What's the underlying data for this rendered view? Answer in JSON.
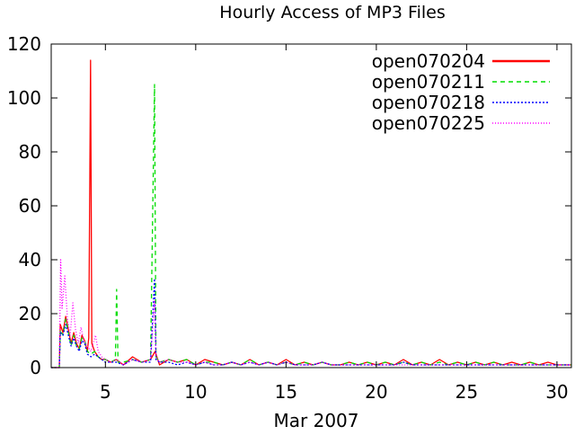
{
  "chart_data": {
    "type": "line",
    "title": "Hourly Access of MP3 Files",
    "xlabel": "Mar 2007",
    "ylabel": "",
    "xlim": [
      2.0,
      30.8
    ],
    "ylim": [
      0,
      120
    ],
    "xticks": [
      5,
      10,
      15,
      20,
      25,
      30
    ],
    "yticks": [
      0,
      20,
      40,
      60,
      80,
      100,
      120
    ],
    "grid": false,
    "legend_position": "top-right",
    "series": [
      {
        "name": "open070204",
        "color": "#ff0000",
        "dash": "solid",
        "points": [
          [
            2.0,
            0
          ],
          [
            2.45,
            0
          ],
          [
            2.5,
            16
          ],
          [
            2.65,
            13
          ],
          [
            2.8,
            19
          ],
          [
            2.95,
            14
          ],
          [
            3.1,
            9
          ],
          [
            3.25,
            13
          ],
          [
            3.4,
            9
          ],
          [
            3.55,
            7
          ],
          [
            3.7,
            12
          ],
          [
            3.85,
            10
          ],
          [
            4.0,
            6
          ],
          [
            4.08,
            11
          ],
          [
            4.18,
            114
          ],
          [
            4.25,
            9
          ],
          [
            4.4,
            6
          ],
          [
            4.6,
            4
          ],
          [
            4.8,
            3
          ],
          [
            5.0,
            3
          ],
          [
            5.3,
            2
          ],
          [
            5.6,
            3
          ],
          [
            6.0,
            1
          ],
          [
            6.5,
            4
          ],
          [
            7.0,
            2
          ],
          [
            7.5,
            3
          ],
          [
            7.75,
            6
          ],
          [
            8.0,
            1
          ],
          [
            8.5,
            3
          ],
          [
            9.0,
            2
          ],
          [
            9.5,
            3
          ],
          [
            10.0,
            1
          ],
          [
            10.5,
            3
          ],
          [
            11.0,
            2
          ],
          [
            11.5,
            1
          ],
          [
            12.0,
            2
          ],
          [
            12.5,
            1
          ],
          [
            13.0,
            3
          ],
          [
            13.5,
            1
          ],
          [
            14.0,
            2
          ],
          [
            14.5,
            1
          ],
          [
            15.0,
            3
          ],
          [
            15.5,
            1
          ],
          [
            16.0,
            2
          ],
          [
            16.5,
            1
          ],
          [
            17.0,
            2
          ],
          [
            17.5,
            1
          ],
          [
            18.0,
            1
          ],
          [
            18.5,
            2
          ],
          [
            19.0,
            1
          ],
          [
            19.5,
            2
          ],
          [
            20.0,
            1
          ],
          [
            20.5,
            2
          ],
          [
            21.0,
            1
          ],
          [
            21.5,
            3
          ],
          [
            22.0,
            1
          ],
          [
            22.5,
            2
          ],
          [
            23.0,
            1
          ],
          [
            23.5,
            3
          ],
          [
            24.0,
            1
          ],
          [
            24.5,
            2
          ],
          [
            25.0,
            1
          ],
          [
            25.5,
            2
          ],
          [
            26.0,
            1
          ],
          [
            26.5,
            2
          ],
          [
            27.0,
            1
          ],
          [
            27.5,
            2
          ],
          [
            28.0,
            1
          ],
          [
            28.5,
            2
          ],
          [
            29.0,
            1
          ],
          [
            29.5,
            2
          ],
          [
            30.0,
            1
          ],
          [
            30.5,
            1
          ],
          [
            30.8,
            1
          ]
        ]
      },
      {
        "name": "open070211",
        "color": "#00dd00",
        "dash": "5,4",
        "points": [
          [
            2.0,
            0
          ],
          [
            2.45,
            0
          ],
          [
            2.5,
            14
          ],
          [
            2.65,
            12
          ],
          [
            2.8,
            18
          ],
          [
            2.95,
            13
          ],
          [
            3.1,
            8
          ],
          [
            3.25,
            12
          ],
          [
            3.4,
            8
          ],
          [
            3.55,
            7
          ],
          [
            3.7,
            11
          ],
          [
            3.85,
            10
          ],
          [
            4.0,
            6
          ],
          [
            4.2,
            5
          ],
          [
            4.4,
            6
          ],
          [
            4.6,
            4
          ],
          [
            4.8,
            3
          ],
          [
            5.0,
            3
          ],
          [
            5.3,
            2
          ],
          [
            5.55,
            3
          ],
          [
            5.62,
            29
          ],
          [
            5.7,
            2
          ],
          [
            6.0,
            2
          ],
          [
            6.5,
            3
          ],
          [
            7.0,
            2
          ],
          [
            7.5,
            3
          ],
          [
            7.72,
            105
          ],
          [
            7.8,
            4
          ],
          [
            8.0,
            2
          ],
          [
            8.5,
            3
          ],
          [
            9.0,
            2
          ],
          [
            9.5,
            3
          ],
          [
            10.0,
            1
          ],
          [
            10.5,
            2
          ],
          [
            11.0,
            2
          ],
          [
            11.5,
            1
          ],
          [
            12.0,
            2
          ],
          [
            12.5,
            1
          ],
          [
            13.0,
            3
          ],
          [
            13.5,
            1
          ],
          [
            14.0,
            2
          ],
          [
            14.5,
            1
          ],
          [
            15.0,
            2
          ],
          [
            15.5,
            1
          ],
          [
            16.0,
            2
          ],
          [
            16.5,
            1
          ],
          [
            17.0,
            2
          ],
          [
            17.5,
            1
          ],
          [
            18.0,
            1
          ],
          [
            18.5,
            2
          ],
          [
            19.0,
            1
          ],
          [
            19.5,
            2
          ],
          [
            20.0,
            1
          ],
          [
            20.5,
            2
          ],
          [
            21.0,
            1
          ],
          [
            21.5,
            2
          ],
          [
            22.0,
            1
          ],
          [
            22.5,
            2
          ],
          [
            23.0,
            1
          ],
          [
            23.5,
            2
          ],
          [
            24.0,
            1
          ],
          [
            24.5,
            2
          ],
          [
            25.0,
            1
          ],
          [
            25.5,
            2
          ],
          [
            26.0,
            1
          ],
          [
            26.5,
            2
          ],
          [
            27.0,
            1
          ],
          [
            27.5,
            1
          ],
          [
            28.0,
            1
          ],
          [
            28.5,
            2
          ],
          [
            29.0,
            1
          ],
          [
            29.5,
            1
          ],
          [
            30.0,
            1
          ],
          [
            30.5,
            1
          ],
          [
            30.8,
            1
          ]
        ]
      },
      {
        "name": "open070218",
        "color": "#0000ff",
        "dash": "2,2",
        "points": [
          [
            2.0,
            0
          ],
          [
            2.45,
            0
          ],
          [
            2.5,
            13
          ],
          [
            2.65,
            12
          ],
          [
            2.8,
            16
          ],
          [
            2.95,
            12
          ],
          [
            3.1,
            8
          ],
          [
            3.25,
            11
          ],
          [
            3.4,
            8
          ],
          [
            3.55,
            6
          ],
          [
            3.7,
            10
          ],
          [
            3.85,
            9
          ],
          [
            4.0,
            5
          ],
          [
            4.2,
            4
          ],
          [
            4.4,
            5
          ],
          [
            4.6,
            4
          ],
          [
            4.8,
            3
          ],
          [
            5.0,
            2
          ],
          [
            5.3,
            2
          ],
          [
            5.6,
            2
          ],
          [
            6.0,
            1
          ],
          [
            6.5,
            3
          ],
          [
            7.0,
            2
          ],
          [
            7.5,
            2
          ],
          [
            7.72,
            33
          ],
          [
            7.8,
            3
          ],
          [
            8.0,
            2
          ],
          [
            8.5,
            2
          ],
          [
            9.0,
            1
          ],
          [
            9.5,
            2
          ],
          [
            10.0,
            1
          ],
          [
            10.5,
            2
          ],
          [
            11.0,
            1
          ],
          [
            11.5,
            1
          ],
          [
            12.0,
            2
          ],
          [
            12.5,
            1
          ],
          [
            13.0,
            2
          ],
          [
            13.5,
            1
          ],
          [
            14.0,
            2
          ],
          [
            14.5,
            1
          ],
          [
            15.0,
            2
          ],
          [
            15.5,
            1
          ],
          [
            16.0,
            1
          ],
          [
            16.5,
            1
          ],
          [
            17.0,
            2
          ],
          [
            17.5,
            1
          ],
          [
            18.0,
            1
          ],
          [
            18.5,
            1
          ],
          [
            19.0,
            1
          ],
          [
            19.5,
            1
          ],
          [
            20.0,
            1
          ],
          [
            20.5,
            1
          ],
          [
            21.0,
            1
          ],
          [
            21.5,
            2
          ],
          [
            22.0,
            1
          ],
          [
            22.5,
            1
          ],
          [
            23.0,
            1
          ],
          [
            23.5,
            1
          ],
          [
            24.0,
            1
          ],
          [
            24.5,
            1
          ],
          [
            25.0,
            1
          ],
          [
            25.5,
            1
          ],
          [
            26.0,
            1
          ],
          [
            26.5,
            1
          ],
          [
            27.0,
            1
          ],
          [
            27.5,
            1
          ],
          [
            28.0,
            1
          ],
          [
            28.5,
            1
          ],
          [
            29.0,
            1
          ],
          [
            29.5,
            1
          ],
          [
            30.0,
            1
          ],
          [
            30.5,
            1
          ],
          [
            30.8,
            1
          ]
        ]
      },
      {
        "name": "open070225",
        "color": "#ff00ff",
        "dash": "1,2",
        "points": [
          [
            2.0,
            0
          ],
          [
            2.45,
            0
          ],
          [
            2.52,
            40
          ],
          [
            2.6,
            22
          ],
          [
            2.75,
            34
          ],
          [
            2.9,
            18
          ],
          [
            3.05,
            12
          ],
          [
            3.2,
            24
          ],
          [
            3.35,
            14
          ],
          [
            3.5,
            9
          ],
          [
            3.65,
            15
          ],
          [
            3.8,
            10
          ],
          [
            4.0,
            8
          ],
          [
            4.2,
            6
          ],
          [
            4.45,
            12
          ],
          [
            4.6,
            6
          ],
          [
            4.8,
            4
          ],
          [
            5.0,
            3
          ],
          [
            5.3,
            2
          ],
          [
            5.6,
            3
          ],
          [
            6.0,
            1
          ],
          [
            6.5,
            3
          ],
          [
            7.0,
            2
          ],
          [
            7.5,
            3
          ],
          [
            7.72,
            25
          ],
          [
            7.8,
            4
          ],
          [
            8.0,
            2
          ],
          [
            8.5,
            3
          ],
          [
            9.0,
            2
          ],
          [
            9.5,
            2
          ],
          [
            10.0,
            1
          ],
          [
            10.5,
            2
          ],
          [
            11.0,
            1
          ],
          [
            11.5,
            1
          ],
          [
            12.0,
            2
          ],
          [
            12.5,
            1
          ],
          [
            13.0,
            2
          ],
          [
            13.5,
            1
          ],
          [
            14.0,
            2
          ],
          [
            14.5,
            1
          ],
          [
            15.0,
            2
          ],
          [
            15.5,
            1
          ],
          [
            16.0,
            1
          ],
          [
            16.5,
            1
          ],
          [
            17.0,
            2
          ],
          [
            17.5,
            1
          ],
          [
            18.0,
            1
          ],
          [
            18.5,
            1
          ],
          [
            19.0,
            1
          ],
          [
            19.5,
            1
          ],
          [
            20.0,
            1
          ],
          [
            20.5,
            1
          ],
          [
            21.0,
            1
          ],
          [
            21.5,
            1
          ],
          [
            22.0,
            1
          ],
          [
            22.5,
            1
          ],
          [
            23.0,
            1
          ],
          [
            23.5,
            1
          ],
          [
            24.0,
            1
          ],
          [
            24.5,
            1
          ],
          [
            25.0,
            1
          ],
          [
            25.5,
            1
          ],
          [
            26.0,
            1
          ],
          [
            26.5,
            1
          ],
          [
            27.0,
            1
          ],
          [
            27.5,
            1
          ],
          [
            28.0,
            1
          ],
          [
            28.5,
            1
          ],
          [
            29.0,
            1
          ],
          [
            29.5,
            1
          ],
          [
            30.0,
            1
          ],
          [
            30.5,
            1
          ],
          [
            30.8,
            1
          ]
        ]
      }
    ]
  }
}
